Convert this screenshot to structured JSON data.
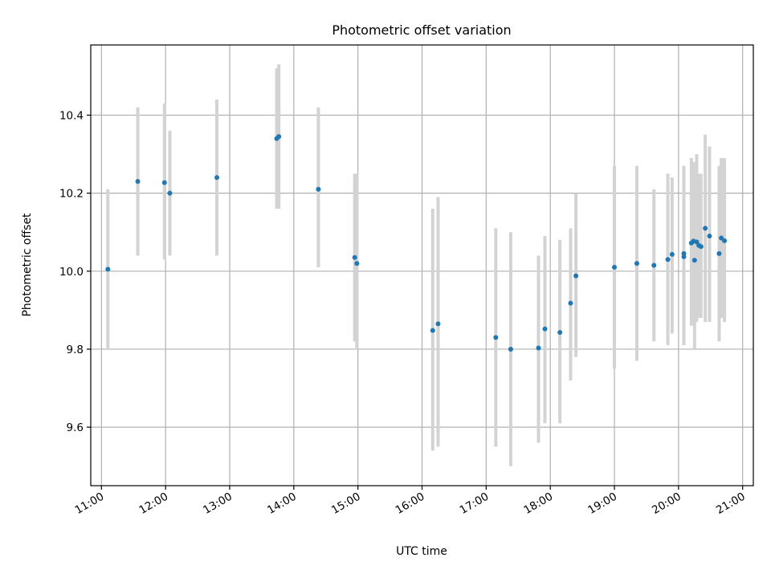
{
  "chart_data": {
    "type": "scatter",
    "title": "Photometric offset variation",
    "xlabel": "UTC time",
    "ylabel": "Photometric offset",
    "xlim": [
      "10:50",
      "21:10"
    ],
    "ylim": [
      9.45,
      10.58
    ],
    "x_ticks": [
      "11:00",
      "12:00",
      "13:00",
      "14:00",
      "15:00",
      "16:00",
      "17:00",
      "18:00",
      "19:00",
      "20:00",
      "21:00"
    ],
    "y_ticks": [
      "9.6",
      "9.8",
      "10.0",
      "10.2",
      "10.4"
    ],
    "grid": true,
    "point_color": "#1f77b4",
    "errorbar_color": "#d3d3d3",
    "points": [
      {
        "x": "11:06",
        "y": 10.005,
        "ylow": 9.8,
        "yhigh": 10.21
      },
      {
        "x": "11:34",
        "y": 10.23,
        "ylow": 10.04,
        "yhigh": 10.42
      },
      {
        "x": "11:59",
        "y": 10.227,
        "ylow": 10.03,
        "yhigh": 10.43
      },
      {
        "x": "12:04",
        "y": 10.2,
        "ylow": 10.04,
        "yhigh": 10.36
      },
      {
        "x": "12:48",
        "y": 10.24,
        "ylow": 10.04,
        "yhigh": 10.44
      },
      {
        "x": "13:44",
        "y": 10.34,
        "ylow": 10.16,
        "yhigh": 10.52
      },
      {
        "x": "13:46",
        "y": 10.345,
        "ylow": 10.16,
        "yhigh": 10.53
      },
      {
        "x": "14:23",
        "y": 10.21,
        "ylow": 10.01,
        "yhigh": 10.42
      },
      {
        "x": "14:57",
        "y": 10.035,
        "ylow": 9.82,
        "yhigh": 10.25
      },
      {
        "x": "14:59",
        "y": 10.02,
        "ylow": 9.8,
        "yhigh": 10.25
      },
      {
        "x": "16:10",
        "y": 9.848,
        "ylow": 9.54,
        "yhigh": 10.16
      },
      {
        "x": "16:15",
        "y": 9.865,
        "ylow": 9.55,
        "yhigh": 10.19
      },
      {
        "x": "17:09",
        "y": 9.83,
        "ylow": 9.55,
        "yhigh": 10.11
      },
      {
        "x": "17:23",
        "y": 9.8,
        "ylow": 9.5,
        "yhigh": 10.1
      },
      {
        "x": "17:49",
        "y": 9.803,
        "ylow": 9.56,
        "yhigh": 10.04
      },
      {
        "x": "17:55",
        "y": 9.852,
        "ylow": 9.61,
        "yhigh": 10.09
      },
      {
        "x": "18:09",
        "y": 9.843,
        "ylow": 9.61,
        "yhigh": 10.08
      },
      {
        "x": "18:19",
        "y": 9.918,
        "ylow": 9.72,
        "yhigh": 10.11
      },
      {
        "x": "18:24",
        "y": 9.988,
        "ylow": 9.78,
        "yhigh": 10.2
      },
      {
        "x": "19:00",
        "y": 10.01,
        "ylow": 9.75,
        "yhigh": 10.27
      },
      {
        "x": "19:21",
        "y": 10.02,
        "ylow": 9.77,
        "yhigh": 10.27
      },
      {
        "x": "19:37",
        "y": 10.015,
        "ylow": 9.82,
        "yhigh": 10.21
      },
      {
        "x": "19:50",
        "y": 10.03,
        "ylow": 9.81,
        "yhigh": 10.25
      },
      {
        "x": "19:54",
        "y": 10.043,
        "ylow": 9.84,
        "yhigh": 10.24
      },
      {
        "x": "20:05",
        "y": 10.037,
        "ylow": 9.81,
        "yhigh": 10.27
      },
      {
        "x": "20:05",
        "y": 10.045,
        "ylow": 9.82,
        "yhigh": 10.26
      },
      {
        "x": "20:12",
        "y": 10.072,
        "ylow": 9.86,
        "yhigh": 10.29
      },
      {
        "x": "20:14",
        "y": 10.077,
        "ylow": 9.87,
        "yhigh": 10.28
      },
      {
        "x": "20:15",
        "y": 10.028,
        "ylow": 9.8,
        "yhigh": 10.26
      },
      {
        "x": "20:17",
        "y": 10.075,
        "ylow": 9.87,
        "yhigh": 10.3
      },
      {
        "x": "20:19",
        "y": 10.066,
        "ylow": 9.88,
        "yhigh": 10.25
      },
      {
        "x": "20:21",
        "y": 10.063,
        "ylow": 9.88,
        "yhigh": 10.25
      },
      {
        "x": "20:25",
        "y": 10.11,
        "ylow": 9.87,
        "yhigh": 10.35
      },
      {
        "x": "20:29",
        "y": 10.09,
        "ylow": 9.87,
        "yhigh": 10.32
      },
      {
        "x": "20:38",
        "y": 10.045,
        "ylow": 9.82,
        "yhigh": 10.27
      },
      {
        "x": "20:40",
        "y": 10.085,
        "ylow": 9.88,
        "yhigh": 10.29
      },
      {
        "x": "20:43",
        "y": 10.078,
        "ylow": 9.87,
        "yhigh": 10.29
      }
    ]
  }
}
